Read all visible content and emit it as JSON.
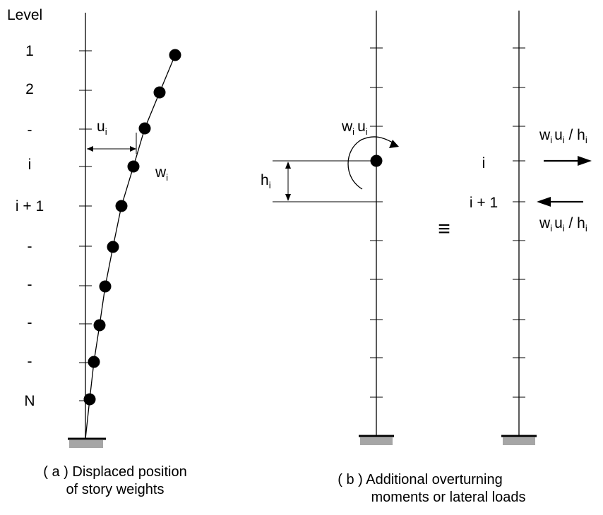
{
  "panel_a": {
    "heading": "Level",
    "level_labels": [
      "1",
      "2",
      "-",
      "i",
      "i + 1",
      "-",
      "-",
      "-",
      "-",
      "N"
    ],
    "displacement_label": {
      "base": "u",
      "sub": "i"
    },
    "weight_label": {
      "base": "w",
      "sub": "i"
    },
    "caption_line1": "( a ) Displaced position",
    "caption_line2": "of story weights"
  },
  "panel_b": {
    "moment_label": {
      "w": "w",
      "w_sub": "i",
      "u": "u",
      "u_sub": "i"
    },
    "height_label": {
      "base": "h",
      "sub": "i"
    },
    "equivalence_symbol": "≡",
    "level_i_label": "i",
    "level_i1_label": "i + 1",
    "load_top": {
      "w": "w",
      "w_sub": "i",
      "u": "u",
      "u_sub": "i",
      "slash": " / h",
      "h_sub": "i"
    },
    "load_bottom": {
      "w": "w",
      "w_sub": "i",
      "u": "u",
      "u_sub": "i",
      "slash": " / h",
      "h_sub": "i"
    },
    "caption_line1": "( b ) Additional overturning",
    "caption_line2": "moments or lateral loads"
  },
  "colors": {
    "ink": "#000000",
    "support": "#a6a6a6"
  }
}
